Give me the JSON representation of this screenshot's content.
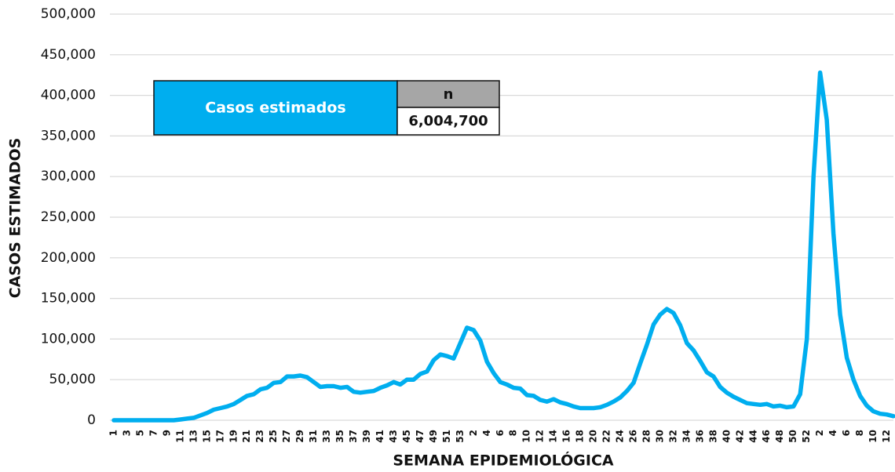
{
  "chart_data": {
    "type": "line",
    "y_axis_label": "CASOS ESTIMADOS",
    "x_axis_label": "SEMANA EPIDEMIOLÓGICA",
    "summary_table": {
      "label": "Casos estimados",
      "header": "n",
      "value": "6,004,700"
    },
    "categories": [
      "1",
      null,
      "3",
      null,
      "5",
      null,
      "7",
      null,
      "9",
      null,
      "11",
      null,
      "13",
      null,
      "15",
      null,
      "17",
      null,
      "19",
      null,
      "21",
      null,
      "23",
      null,
      "25",
      null,
      "27",
      null,
      "29",
      null,
      "31",
      null,
      "33",
      null,
      "35",
      null,
      "37",
      null,
      "39",
      null,
      "41",
      null,
      "43",
      null,
      "45",
      null,
      "47",
      null,
      "49",
      null,
      "51",
      null,
      "53",
      null,
      "2",
      null,
      "4",
      null,
      "6",
      null,
      "8",
      null,
      "10",
      null,
      "12",
      null,
      "14",
      null,
      "16",
      null,
      "18",
      null,
      "20",
      null,
      "22",
      null,
      "24",
      null,
      "26",
      null,
      "28",
      null,
      "30",
      null,
      "32",
      null,
      "34",
      null,
      "36",
      null,
      "38",
      null,
      "40",
      null,
      "42",
      null,
      "44",
      null,
      "46",
      null,
      "48",
      null,
      "50",
      null,
      "52",
      null,
      "2",
      null,
      "4",
      null,
      "6",
      null,
      "8",
      null,
      "10",
      null,
      "12",
      null
    ],
    "values": [
      0,
      0,
      0,
      0,
      0,
      0,
      0,
      0,
      0,
      0,
      1000,
      2000,
      3000,
      6000,
      9000,
      13000,
      15000,
      17000,
      20000,
      25000,
      30000,
      32000,
      38000,
      40000,
      46000,
      47000,
      54000,
      54000,
      55000,
      53000,
      47000,
      41000,
      42000,
      42000,
      40000,
      41000,
      35000,
      34000,
      35000,
      36000,
      40000,
      43000,
      47000,
      44000,
      50000,
      50000,
      57000,
      60000,
      74000,
      81000,
      79000,
      76000,
      95000,
      114000,
      111000,
      98000,
      72000,
      58000,
      47000,
      44000,
      40000,
      39000,
      31000,
      30000,
      25000,
      23000,
      26000,
      22000,
      20000,
      17000,
      15000,
      15000,
      15000,
      16000,
      19000,
      23000,
      28000,
      36000,
      46000,
      70000,
      93000,
      118000,
      130000,
      137000,
      132000,
      117000,
      95000,
      86000,
      73000,
      59000,
      54000,
      41000,
      34000,
      29000,
      25000,
      21000,
      20000,
      19000,
      20000,
      17000,
      18000,
      16000,
      17000,
      32000,
      100000,
      300000,
      428000,
      370000,
      230000,
      130000,
      77000,
      50000,
      30000,
      18000,
      11000,
      8000,
      7000,
      5000
    ],
    "color": "#00aeef",
    "ylim": [
      0,
      500000
    ],
    "yticks": [
      0,
      {
        "value": 50000,
        "label": "50,000"
      },
      {
        "value": 100000,
        "label": "100,000"
      },
      {
        "value": 150000,
        "label": "150,000"
      },
      {
        "value": 200000,
        "label": "200,000"
      },
      {
        "value": 250000,
        "label": "250,000"
      },
      {
        "value": 300000,
        "label": "300,000"
      },
      {
        "value": 350000,
        "label": "350,000"
      },
      {
        "value": 400000,
        "label": "400,000"
      },
      {
        "value": 450000,
        "label": "450,000"
      },
      {
        "value": 500000,
        "label": "500,000"
      }
    ],
    "grid": true
  }
}
